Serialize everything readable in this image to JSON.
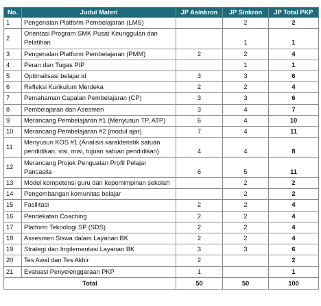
{
  "table": {
    "header": [
      "No.",
      "Judul Materi",
      "JP Asinkron",
      "JP Sinkron",
      "JP Total PKP"
    ],
    "rows": [
      {
        "no": "1",
        "title": "Pengenalan Platform Pembelajaran (LMS)",
        "sinkron": "2",
        "total": "2"
      },
      {
        "no": "2",
        "title": "Orientasi Program SMK Pusat Keunggulan dan Pelatihan",
        "sinkron": "1",
        "total": "1"
      },
      {
        "no": "3",
        "title": "Pengenalan Platform Pembelajaran (PMM)",
        "asinkron": "2",
        "sinkron": "2",
        "total": "4"
      },
      {
        "no": "4",
        "title": "Peran dan Tugas  PIP",
        "sinkron": "1",
        "total": "1"
      },
      {
        "no": "5",
        "title": "Optimalisasi belajar.id",
        "asinkron": "3",
        "sinkron": "3",
        "total": "6"
      },
      {
        "no": "6",
        "title": "Refleksi Kurikulum Merdeka",
        "asinkron": "2",
        "sinkron": "2",
        "total": "4"
      },
      {
        "no": "7",
        "title": "Pemahaman Capaian Pembelajaran (CP)",
        "asinkron": "3",
        "sinkron": "3",
        "total": "6"
      },
      {
        "no": "8",
        "title": "Pembelajaran dan Asesmen",
        "asinkron": "3",
        "sinkron": "4",
        "total": "7"
      },
      {
        "no": "9",
        "title": "Merancang Pembelajaran #1 (Menyusun TP, ATP)",
        "asinkron": "6",
        "sinkron": "4",
        "total": "10"
      },
      {
        "no": "10",
        "title": "Merancang Pembelajaran #2 (modul ajar)",
        "asinkron": "7",
        "sinkron": "4",
        "total": "11"
      },
      {
        "no": "11",
        "title": "Menyusun KOS #1 (Analisis karakteristik satuan pendidikan, visi, misi, tujuan satuan pendidikan)",
        "asinkron": "4",
        "sinkron": "4",
        "total": "8"
      },
      {
        "no": "12",
        "title": "Merancang Projek Penguatan Profil Pelajar Pancasila",
        "asinkron": "6",
        "sinkron": "5",
        "total": "11"
      },
      {
        "no": "13",
        "title": "Model kompetensi guru dan kepemimpinan sekolah",
        "sinkron": "2",
        "total": "2"
      },
      {
        "no": "14",
        "title": "Pengembangan komunitas belajar",
        "sinkron": "2",
        "total": "2"
      },
      {
        "no": "15",
        "title": "Fasilitasi",
        "asinkron": "2",
        "sinkron": "2",
        "total": "4"
      },
      {
        "no": "16",
        "title": "Pendekatan Coaching",
        "asinkron": "2",
        "sinkron": "2",
        "total": "4"
      },
      {
        "no": "17",
        "title": "Platform Teknologi SP (SDS)",
        "asinkron": "2",
        "sinkron": "2",
        "total": "4"
      },
      {
        "no": "18",
        "title": "Assesmen Siswa dalam Layanan BK",
        "asinkron": "2",
        "sinkron": "2",
        "total": "4"
      },
      {
        "no": "19",
        "title": "Strategi dan Implementasi Layanan BK",
        "asinkron": "3",
        "sinkron": "3",
        "total": "6"
      },
      {
        "no": "20",
        "title": "Tes Awal dan Tes Akhir",
        "asinkron": "2",
        "total": "2"
      },
      {
        "no": "21",
        "title": "Evaluasi Penyelenggaraan PKP",
        "asinkron": "1",
        "total": "1"
      }
    ],
    "total": {
      "label": "Total",
      "asinkron": "50",
      "sinkron": "50",
      "total": "100"
    }
  }
}
